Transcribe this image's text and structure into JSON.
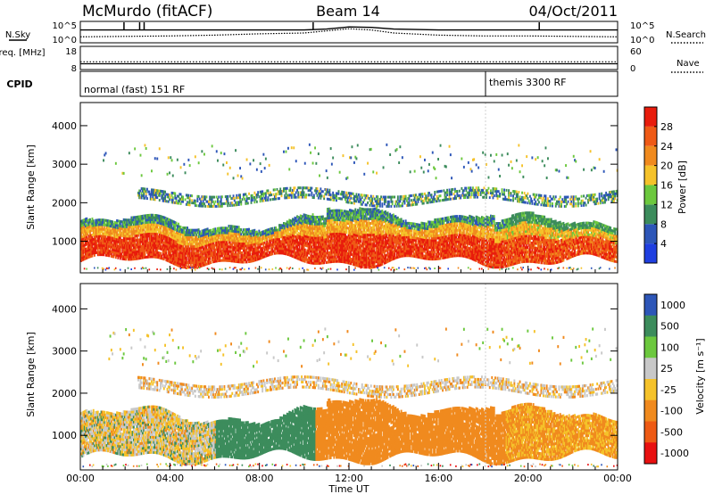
{
  "header": {
    "station": "McMurdo (fitACF)",
    "beam": "Beam 14",
    "date": "04/Oct/2011"
  },
  "colors": {
    "power_scale": [
      "#1f3fe0",
      "#2d56b8",
      "#3c8c5c",
      "#6cc83e",
      "#f5c22a",
      "#f08a1e",
      "#ef5a16",
      "#e81c0c"
    ],
    "velocity_scale": [
      "#e81010",
      "#ee5a14",
      "#f08a1e",
      "#f5c22a",
      "#c8c8c8",
      "#6cc83e",
      "#3c8c5c",
      "#2d56b8"
    ]
  },
  "chart_data": [
    {
      "type": "line",
      "name": "noise-panel",
      "series": [
        {
          "name": "N.Sky",
          "style": "solid",
          "x": [
            0,
            2,
            4,
            6,
            8,
            10,
            11,
            12,
            13,
            14,
            16,
            18,
            20,
            22,
            24
          ],
          "y": [
            3.0,
            3.0,
            3.0,
            3.0,
            3.0,
            3.0,
            3.2,
            3.7,
            3.6,
            3.2,
            3.0,
            3.0,
            3.0,
            3.0,
            3.0
          ]
        },
        {
          "name": "N.Search",
          "style": "dotted",
          "x": [
            0,
            2,
            4,
            6,
            8,
            10,
            11,
            12,
            13,
            14,
            16,
            18,
            20,
            22,
            24
          ],
          "y": [
            1.4,
            1.5,
            1.6,
            1.8,
            2.1,
            2.3,
            2.8,
            3.3,
            3.0,
            2.3,
            1.8,
            1.6,
            1.6,
            1.5,
            1.4
          ]
        }
      ],
      "ylabel_left": "N.Sky",
      "ylabel_right": "N.Search",
      "left_ticks": [
        "10^5",
        "10^0"
      ],
      "right_ticks": [
        "10^5",
        "10^0"
      ],
      "scale": "log"
    },
    {
      "type": "line",
      "name": "frequency-panel",
      "series": [
        {
          "name": "Freq.",
          "style": "solid",
          "x": [
            0,
            24
          ],
          "y": [
            10.5,
            10.5
          ]
        },
        {
          "name": "Nave",
          "style": "dotted",
          "x": [
            0,
            24
          ],
          "y": [
            20,
            20
          ]
        }
      ],
      "ylabel_left": "Freq. [MHz]",
      "ylabel_right": "Nave",
      "left_ticks": [
        18,
        8
      ],
      "right_ticks": [
        60,
        0
      ]
    },
    {
      "type": "table",
      "name": "cpid-panel",
      "label": "CPID",
      "segments": [
        {
          "start": 0,
          "end": 18.1,
          "label": "normal (fast) 151 RF"
        },
        {
          "start": 18.1,
          "end": 24,
          "label": "themis 3300 RF"
        }
      ]
    },
    {
      "type": "heatmap",
      "name": "power-panel",
      "ylabel": "Slant Range [km]",
      "ylim": [
        180,
        4600
      ],
      "yticks": [
        1000,
        2000,
        3000,
        4000
      ],
      "xlim": [
        0,
        24
      ],
      "colorbar": {
        "label": "Power [dB]",
        "min": 0,
        "max": 32,
        "ticks": [
          4,
          8,
          12,
          16,
          20,
          24,
          28
        ]
      }
    },
    {
      "type": "heatmap",
      "name": "velocity-panel",
      "ylabel": "Slant Range [km]",
      "ylim": [
        180,
        4600
      ],
      "yticks": [
        1000,
        2000,
        3000,
        4000
      ],
      "xlim": [
        0,
        24
      ],
      "xticks": [
        "00:00",
        "04:00",
        "08:00",
        "12:00",
        "16:00",
        "20:00",
        "00:00"
      ],
      "xlabel": "Time UT",
      "colorbar": {
        "label": "Velocity [m s⁻¹]",
        "ticks": [
          "1000",
          "500",
          "100",
          "25",
          "-25",
          "-100",
          "-500",
          "-1000"
        ]
      }
    }
  ]
}
